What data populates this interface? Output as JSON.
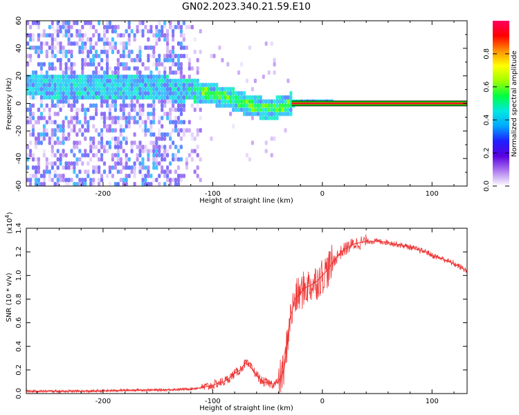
{
  "figure_title": "GN02.2023.340.21.59.E10",
  "chart_data": [
    {
      "type": "heatmap",
      "xlabel": "Height of straight line (km)",
      "ylabel": "Frequency (Hz)",
      "xlim": [
        -270,
        132
      ],
      "ylim": [
        -60,
        60
      ],
      "x_ticks": [
        -200,
        -100,
        0,
        100
      ],
      "y_ticks": [
        -60,
        -40,
        -20,
        0,
        20,
        40,
        60
      ],
      "colorbar": {
        "label": "Normalized spectral amplitude",
        "range": [
          0,
          1
        ],
        "ticks": [
          "0.0",
          "0.2",
          "0.4",
          "0.6",
          "0.8"
        ],
        "colors": [
          "#ffffff",
          "#b07cf0",
          "#5a00e0",
          "#1e20ff",
          "#00a8ff",
          "#00e8e0",
          "#00ff40",
          "#a0ff00",
          "#ffff00",
          "#ff9000",
          "#ff0000",
          "#ff0060"
        ]
      },
      "ridge": [
        {
          "x": -260,
          "y": 12
        },
        {
          "x": -220,
          "y": 11
        },
        {
          "x": -200,
          "y": 11
        },
        {
          "x": -180,
          "y": 10
        },
        {
          "x": -160,
          "y": 10
        },
        {
          "x": -140,
          "y": 9
        },
        {
          "x": -120,
          "y": 8
        },
        {
          "x": -100,
          "y": 5
        },
        {
          "x": -85,
          "y": 2
        },
        {
          "x": -70,
          "y": -2
        },
        {
          "x": -55,
          "y": -5
        },
        {
          "x": -45,
          "y": -5
        },
        {
          "x": -35,
          "y": -3
        },
        {
          "x": -25,
          "y": 0
        },
        {
          "x": 0,
          "y": 0
        },
        {
          "x": 132,
          "y": 0
        }
      ],
      "steady_line": {
        "x_start": -28,
        "x_end": 132,
        "frequency": 0
      }
    },
    {
      "type": "line",
      "xlabel": "Height of straight line (km)",
      "ylabel": "SNR (10 * v/v)",
      "y_multiplier_label": "(x10",
      "y_multiplier_exp": "4",
      "y_multiplier_close": ")",
      "xlim": [
        -270,
        132
      ],
      "ylim": [
        0.0,
        1.4
      ],
      "x_ticks": [
        -200,
        -100,
        0,
        100
      ],
      "y_ticks": [
        "0.0",
        "0.2",
        "0.4",
        "0.6",
        "0.8",
        "1.0",
        "1.2",
        "1.4"
      ],
      "color": "#ee3333",
      "series": [
        {
          "x": [
            -270,
            -250,
            -230,
            -210,
            -190,
            -170,
            -150,
            -130,
            -120,
            -110,
            -100,
            -95,
            -90,
            -85,
            -80,
            -75,
            -70,
            -65,
            -60,
            -55,
            -50,
            -45,
            -40,
            -35,
            -30,
            -25,
            -20,
            -15,
            -10,
            -5,
            0,
            5,
            10,
            15,
            20,
            25,
            30,
            35,
            40,
            45,
            50,
            60,
            70,
            80,
            90,
            95,
            100,
            110,
            120,
            132
          ],
          "y": [
            0.02,
            0.02,
            0.02,
            0.02,
            0.025,
            0.03,
            0.03,
            0.035,
            0.04,
            0.05,
            0.07,
            0.09,
            0.1,
            0.13,
            0.17,
            0.2,
            0.26,
            0.22,
            0.16,
            0.1,
            0.09,
            0.08,
            0.1,
            0.2,
            0.6,
            0.8,
            0.85,
            0.9,
            0.92,
            0.95,
            1.0,
            1.05,
            1.12,
            1.18,
            1.22,
            1.25,
            1.27,
            1.28,
            1.29,
            1.29,
            1.29,
            1.28,
            1.26,
            1.24,
            1.21,
            1.2,
            1.17,
            1.14,
            1.1,
            1.04
          ]
        }
      ]
    }
  ]
}
